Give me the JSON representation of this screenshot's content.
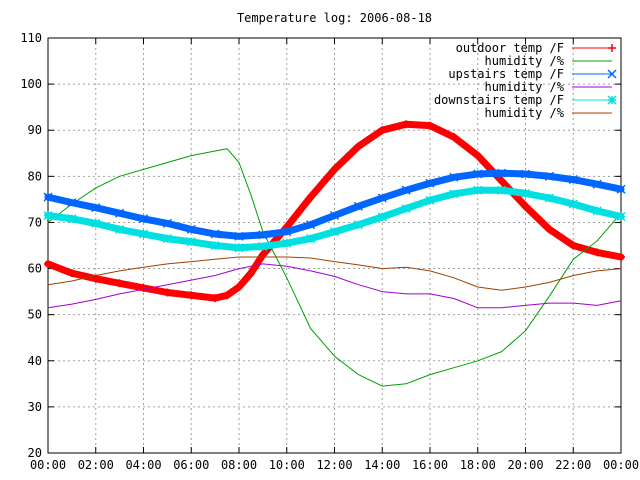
{
  "chart_data": {
    "type": "line",
    "title": "Temperature log: 2006-08-18",
    "xlabel": "",
    "ylabel": "",
    "xlim": [
      0,
      24
    ],
    "ylim": [
      20,
      110
    ],
    "x_ticks": [
      "00:00",
      "02:00",
      "04:00",
      "06:00",
      "08:00",
      "10:00",
      "12:00",
      "14:00",
      "16:00",
      "18:00",
      "20:00",
      "22:00",
      "00:00"
    ],
    "y_ticks": [
      "20",
      "30",
      "40",
      "50",
      "60",
      "70",
      "80",
      "90",
      "100",
      "110"
    ],
    "grid": true,
    "legend_position": "top-right",
    "series": [
      {
        "name": "outdoor temp /F",
        "color": "#ff0000",
        "marker": "plus",
        "points": [
          [
            0,
            61
          ],
          [
            1,
            59
          ],
          [
            2,
            57.8
          ],
          [
            3,
            56.8
          ],
          [
            4,
            55.8
          ],
          [
            5,
            54.8
          ],
          [
            6,
            54.2
          ],
          [
            7,
            53.6
          ],
          [
            7.5,
            54.2
          ],
          [
            8,
            56
          ],
          [
            8.5,
            59
          ],
          [
            9,
            63
          ],
          [
            10,
            69
          ],
          [
            11,
            75.5
          ],
          [
            12,
            81.5
          ],
          [
            13,
            86.5
          ],
          [
            14,
            90
          ],
          [
            15,
            91.3
          ],
          [
            16,
            91
          ],
          [
            17,
            88.5
          ],
          [
            18,
            84.5
          ],
          [
            19,
            79
          ],
          [
            20,
            73.5
          ],
          [
            21,
            68.5
          ],
          [
            22,
            65
          ],
          [
            23,
            63.5
          ],
          [
            24,
            62.5
          ]
        ]
      },
      {
        "name": "humidity /%",
        "color": "#00a000",
        "marker": "none",
        "points": [
          [
            0,
            70
          ],
          [
            1,
            74
          ],
          [
            2,
            77.5
          ],
          [
            3,
            80
          ],
          [
            4,
            81.5
          ],
          [
            5,
            83
          ],
          [
            6,
            84.5
          ],
          [
            7,
            85.5
          ],
          [
            7.5,
            86
          ],
          [
            8,
            83
          ],
          [
            8.5,
            76
          ],
          [
            9,
            68
          ],
          [
            10,
            58
          ],
          [
            11,
            47
          ],
          [
            12,
            41
          ],
          [
            13,
            37
          ],
          [
            14,
            34.5
          ],
          [
            15,
            35
          ],
          [
            16,
            37
          ],
          [
            17,
            38.5
          ],
          [
            18,
            40
          ],
          [
            19,
            42
          ],
          [
            20,
            46.5
          ],
          [
            21,
            54
          ],
          [
            22,
            62
          ],
          [
            23,
            66
          ],
          [
            24,
            72
          ]
        ]
      },
      {
        "name": "upstairs temp /F",
        "color": "#0066ff",
        "marker": "x",
        "points": [
          [
            0,
            75.5
          ],
          [
            1,
            74.3
          ],
          [
            2,
            73.2
          ],
          [
            3,
            72
          ],
          [
            4,
            70.8
          ],
          [
            5,
            69.8
          ],
          [
            6,
            68.5
          ],
          [
            7,
            67.5
          ],
          [
            8,
            67
          ],
          [
            9,
            67.3
          ],
          [
            10,
            68
          ],
          [
            11,
            69.5
          ],
          [
            12,
            71.5
          ],
          [
            13,
            73.5
          ],
          [
            14,
            75.3
          ],
          [
            15,
            77
          ],
          [
            16,
            78.5
          ],
          [
            17,
            79.8
          ],
          [
            18,
            80.5
          ],
          [
            19,
            80.7
          ],
          [
            20,
            80.5
          ],
          [
            21,
            80
          ],
          [
            22,
            79.3
          ],
          [
            23,
            78.3
          ],
          [
            24,
            77.2
          ]
        ]
      },
      {
        "name": "humidity /%",
        "color": "#a000d0",
        "marker": "none",
        "points": [
          [
            0,
            51.5
          ],
          [
            1,
            52.3
          ],
          [
            2,
            53.3
          ],
          [
            3,
            54.5
          ],
          [
            4,
            55.5
          ],
          [
            5,
            56.5
          ],
          [
            6,
            57.5
          ],
          [
            7,
            58.5
          ],
          [
            8,
            60
          ],
          [
            9,
            61
          ],
          [
            10,
            60.5
          ],
          [
            11,
            59.5
          ],
          [
            12,
            58.3
          ],
          [
            13,
            56.5
          ],
          [
            14,
            55
          ],
          [
            15,
            54.5
          ],
          [
            16,
            54.5
          ],
          [
            17,
            53.5
          ],
          [
            18,
            51.5
          ],
          [
            19,
            51.5
          ],
          [
            20,
            52
          ],
          [
            21,
            52.5
          ],
          [
            22,
            52.5
          ],
          [
            23,
            52
          ],
          [
            24,
            53
          ]
        ]
      },
      {
        "name": "downstairs temp /F",
        "color": "#00e0e0",
        "marker": "star",
        "points": [
          [
            0,
            71.5
          ],
          [
            1,
            70.8
          ],
          [
            2,
            69.8
          ],
          [
            3,
            68.5
          ],
          [
            4,
            67.5
          ],
          [
            5,
            66.5
          ],
          [
            6,
            65.8
          ],
          [
            7,
            65
          ],
          [
            8,
            64.5
          ],
          [
            9,
            64.8
          ],
          [
            10,
            65.5
          ],
          [
            11,
            66.5
          ],
          [
            12,
            68
          ],
          [
            13,
            69.5
          ],
          [
            14,
            71.2
          ],
          [
            15,
            73
          ],
          [
            16,
            74.8
          ],
          [
            17,
            76.2
          ],
          [
            18,
            77
          ],
          [
            19,
            77
          ],
          [
            20,
            76.3
          ],
          [
            21,
            75.3
          ],
          [
            22,
            74
          ],
          [
            23,
            72.5
          ],
          [
            24,
            71.3
          ]
        ]
      },
      {
        "name": "humidity /%",
        "color": "#a04000",
        "marker": "none",
        "points": [
          [
            0,
            56.5
          ],
          [
            1,
            57.3
          ],
          [
            2,
            58.5
          ],
          [
            3,
            59.5
          ],
          [
            4,
            60.3
          ],
          [
            5,
            61
          ],
          [
            6,
            61.5
          ],
          [
            7,
            62
          ],
          [
            8,
            62.5
          ],
          [
            9,
            62.5
          ],
          [
            10,
            62.5
          ],
          [
            11,
            62.3
          ],
          [
            12,
            61.5
          ],
          [
            13,
            60.8
          ],
          [
            14,
            60
          ],
          [
            15,
            60.3
          ],
          [
            16,
            59.5
          ],
          [
            17,
            58
          ],
          [
            18,
            56
          ],
          [
            19,
            55.3
          ],
          [
            20,
            56
          ],
          [
            21,
            57
          ],
          [
            22,
            58.5
          ],
          [
            23,
            59.5
          ],
          [
            24,
            60
          ]
        ]
      }
    ]
  }
}
